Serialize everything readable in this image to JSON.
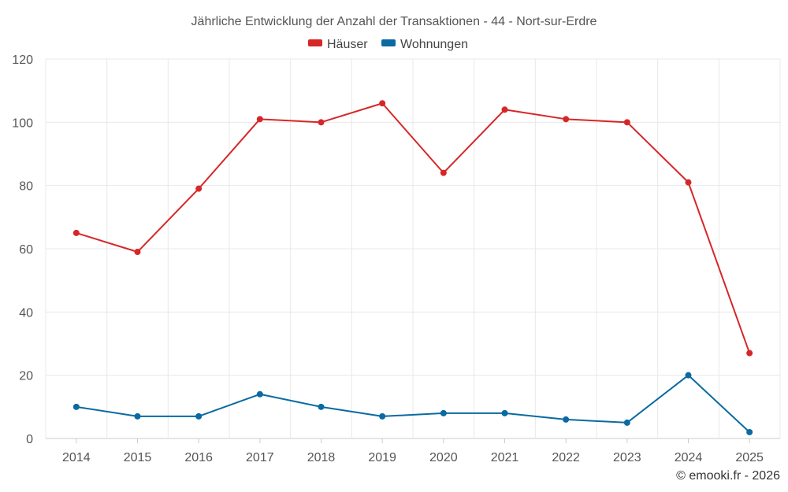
{
  "chart_data": {
    "type": "line",
    "title": "Jährliche Entwicklung der Anzahl der Transaktionen - 44 - Nort-sur-Erdre",
    "categories": [
      "2014",
      "2015",
      "2016",
      "2017",
      "2018",
      "2019",
      "2020",
      "2021",
      "2022",
      "2023",
      "2024",
      "2025"
    ],
    "series": [
      {
        "name": "Häuser",
        "color": "#d62728",
        "values": [
          65,
          59,
          79,
          101,
          100,
          106,
          84,
          104,
          101,
          100,
          81,
          27
        ]
      },
      {
        "name": "Wohnungen",
        "color": "#0a6aa1",
        "values": [
          10,
          7,
          7,
          14,
          10,
          7,
          8,
          8,
          6,
          5,
          20,
          2
        ]
      }
    ],
    "xlabel": "",
    "ylabel": "",
    "ylim": [
      0,
      120
    ],
    "yticks": [
      "0",
      "20",
      "40",
      "60",
      "80",
      "100",
      "120"
    ],
    "grid": true,
    "legend_position": "top-center"
  },
  "credit": "© emooki.fr - 2026"
}
